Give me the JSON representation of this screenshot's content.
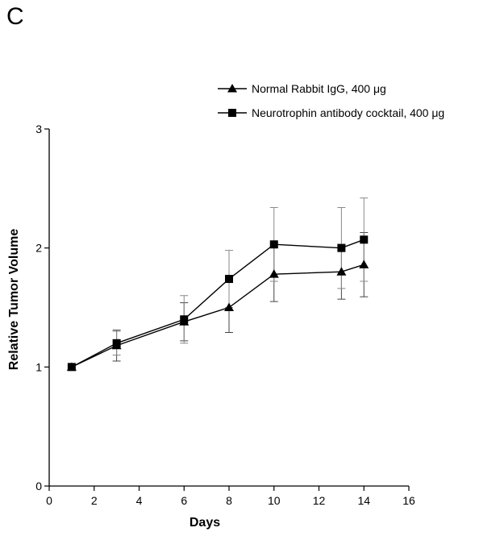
{
  "panel_label": "C",
  "chart_data": {
    "type": "line",
    "title": "",
    "xlabel": "Days",
    "ylabel": "Relative Tumor Volume",
    "xlim": [
      0,
      16
    ],
    "ylim": [
      0,
      3
    ],
    "x_ticks": [
      0,
      2,
      4,
      6,
      8,
      10,
      12,
      14,
      16
    ],
    "y_ticks": [
      0,
      1,
      2,
      3
    ],
    "grid": false,
    "legend_position": "top-right",
    "series": [
      {
        "name": "Normal Rabbit IgG, 400 μg",
        "marker": "triangle",
        "x": [
          1,
          3,
          6,
          8,
          10,
          13,
          14
        ],
        "y": [
          1.0,
          1.18,
          1.38,
          1.5,
          1.78,
          1.8,
          1.86
        ],
        "error": [
          0.0,
          0.13,
          0.16,
          0.21,
          0.23,
          0.23,
          0.27
        ]
      },
      {
        "name": "Neurotrophin antibody cocktail, 400 μg",
        "marker": "square",
        "x": [
          1,
          3,
          6,
          8,
          10,
          13,
          14
        ],
        "y": [
          1.0,
          1.2,
          1.4,
          1.74,
          2.03,
          2.0,
          2.07
        ],
        "error": [
          0.0,
          0.1,
          0.2,
          0.24,
          0.31,
          0.34,
          0.35
        ]
      }
    ]
  }
}
